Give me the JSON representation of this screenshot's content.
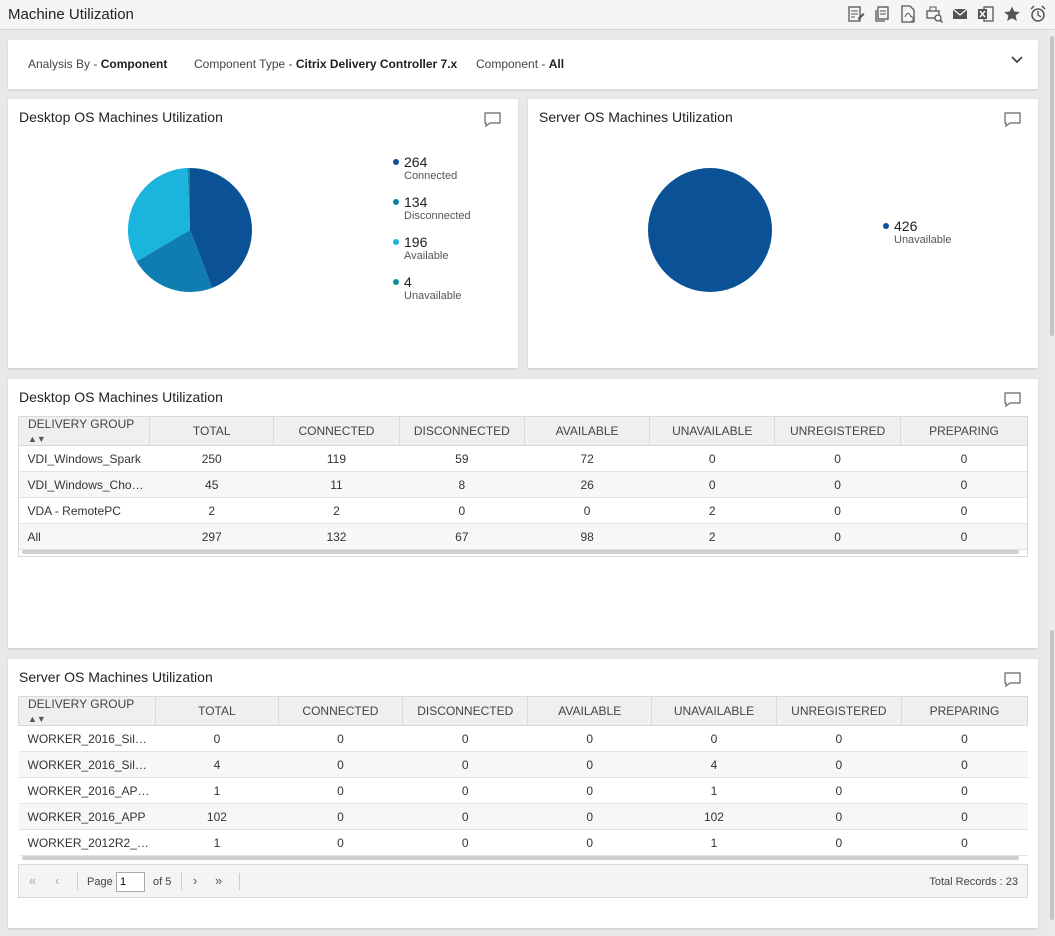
{
  "app": {
    "title": "Machine Utilization"
  },
  "toolbar": {
    "icons": [
      "edit-report-icon",
      "copy-report-icon",
      "pdf-export-icon",
      "print-preview-icon",
      "email-icon",
      "excel-export-icon",
      "favorite-star-icon",
      "alarm-clock-icon"
    ]
  },
  "filters": {
    "analysis_by": {
      "label": "Analysis By",
      "sep": " - ",
      "value": "Component"
    },
    "component_type": {
      "label": "Component Type",
      "sep": " - ",
      "value": "Citrix Delivery Controller 7.x"
    },
    "component": {
      "label": "Component",
      "sep": " - ",
      "value": "All"
    }
  },
  "colors": {
    "primary": "#0a5196",
    "mid": "#0f7db0",
    "light": "#1ab4dd",
    "teal": "#0e8fa0"
  },
  "desktop_chart": {
    "title": "Desktop OS Machines Utilization",
    "chart_data": {
      "type": "pie",
      "categories": [
        "Connected",
        "Disconnected",
        "Available",
        "Unavailable"
      ],
      "values": [
        264,
        134,
        196,
        4
      ]
    },
    "legend": [
      {
        "value": "264",
        "label": "Connected"
      },
      {
        "value": "134",
        "label": "Disconnected"
      },
      {
        "value": "196",
        "label": "Available"
      },
      {
        "value": "4",
        "label": "Unavailable"
      }
    ]
  },
  "server_chart": {
    "title": "Server OS Machines Utilization",
    "chart_data": {
      "type": "pie",
      "categories": [
        "Unavailable"
      ],
      "values": [
        426
      ]
    },
    "legend": [
      {
        "value": "426",
        "label": "Unavailable"
      }
    ]
  },
  "desktop_table": {
    "title": "Desktop OS Machines Utilization",
    "columns": [
      "DELIVERY GROUP",
      "TOTAL",
      "CONNECTED",
      "DISCONNECTED",
      "AVAILABLE",
      "UNAVAILABLE",
      "UNREGISTERED",
      "PREPARING"
    ],
    "rows": [
      [
        "VDI_Windows_Spark",
        "250",
        "119",
        "59",
        "72",
        "0",
        "0",
        "0"
      ],
      [
        "VDI_Windows_Cho…",
        "45",
        "11",
        "8",
        "26",
        "0",
        "0",
        "0"
      ],
      [
        "VDA - RemotePC",
        "2",
        "2",
        "0",
        "0",
        "2",
        "0",
        "0"
      ],
      [
        "All",
        "297",
        "132",
        "67",
        "98",
        "2",
        "0",
        "0"
      ]
    ]
  },
  "server_table": {
    "title": "Server OS Machines Utilization",
    "columns": [
      "DELIVERY GROUP",
      "TOTAL",
      "CONNECTED",
      "DISCONNECTED",
      "AVAILABLE",
      "UNAVAILABLE",
      "UNREGISTERED",
      "PREPARING"
    ],
    "rows": [
      [
        "WORKER_2016_Sil…",
        "0",
        "0",
        "0",
        "0",
        "0",
        "0",
        "0"
      ],
      [
        "WORKER_2016_Sil…",
        "4",
        "0",
        "0",
        "0",
        "4",
        "0",
        "0"
      ],
      [
        "WORKER_2016_AP…",
        "1",
        "0",
        "0",
        "0",
        "1",
        "0",
        "0"
      ],
      [
        "WORKER_2016_APP",
        "102",
        "0",
        "0",
        "0",
        "102",
        "0",
        "0"
      ],
      [
        "WORKER_2012R2_…",
        "1",
        "0",
        "0",
        "0",
        "1",
        "0",
        "0"
      ]
    ]
  },
  "pager": {
    "page_label": "Page",
    "page_value": "1",
    "of_label": "of 5",
    "total_label": "Total Records : 23"
  }
}
